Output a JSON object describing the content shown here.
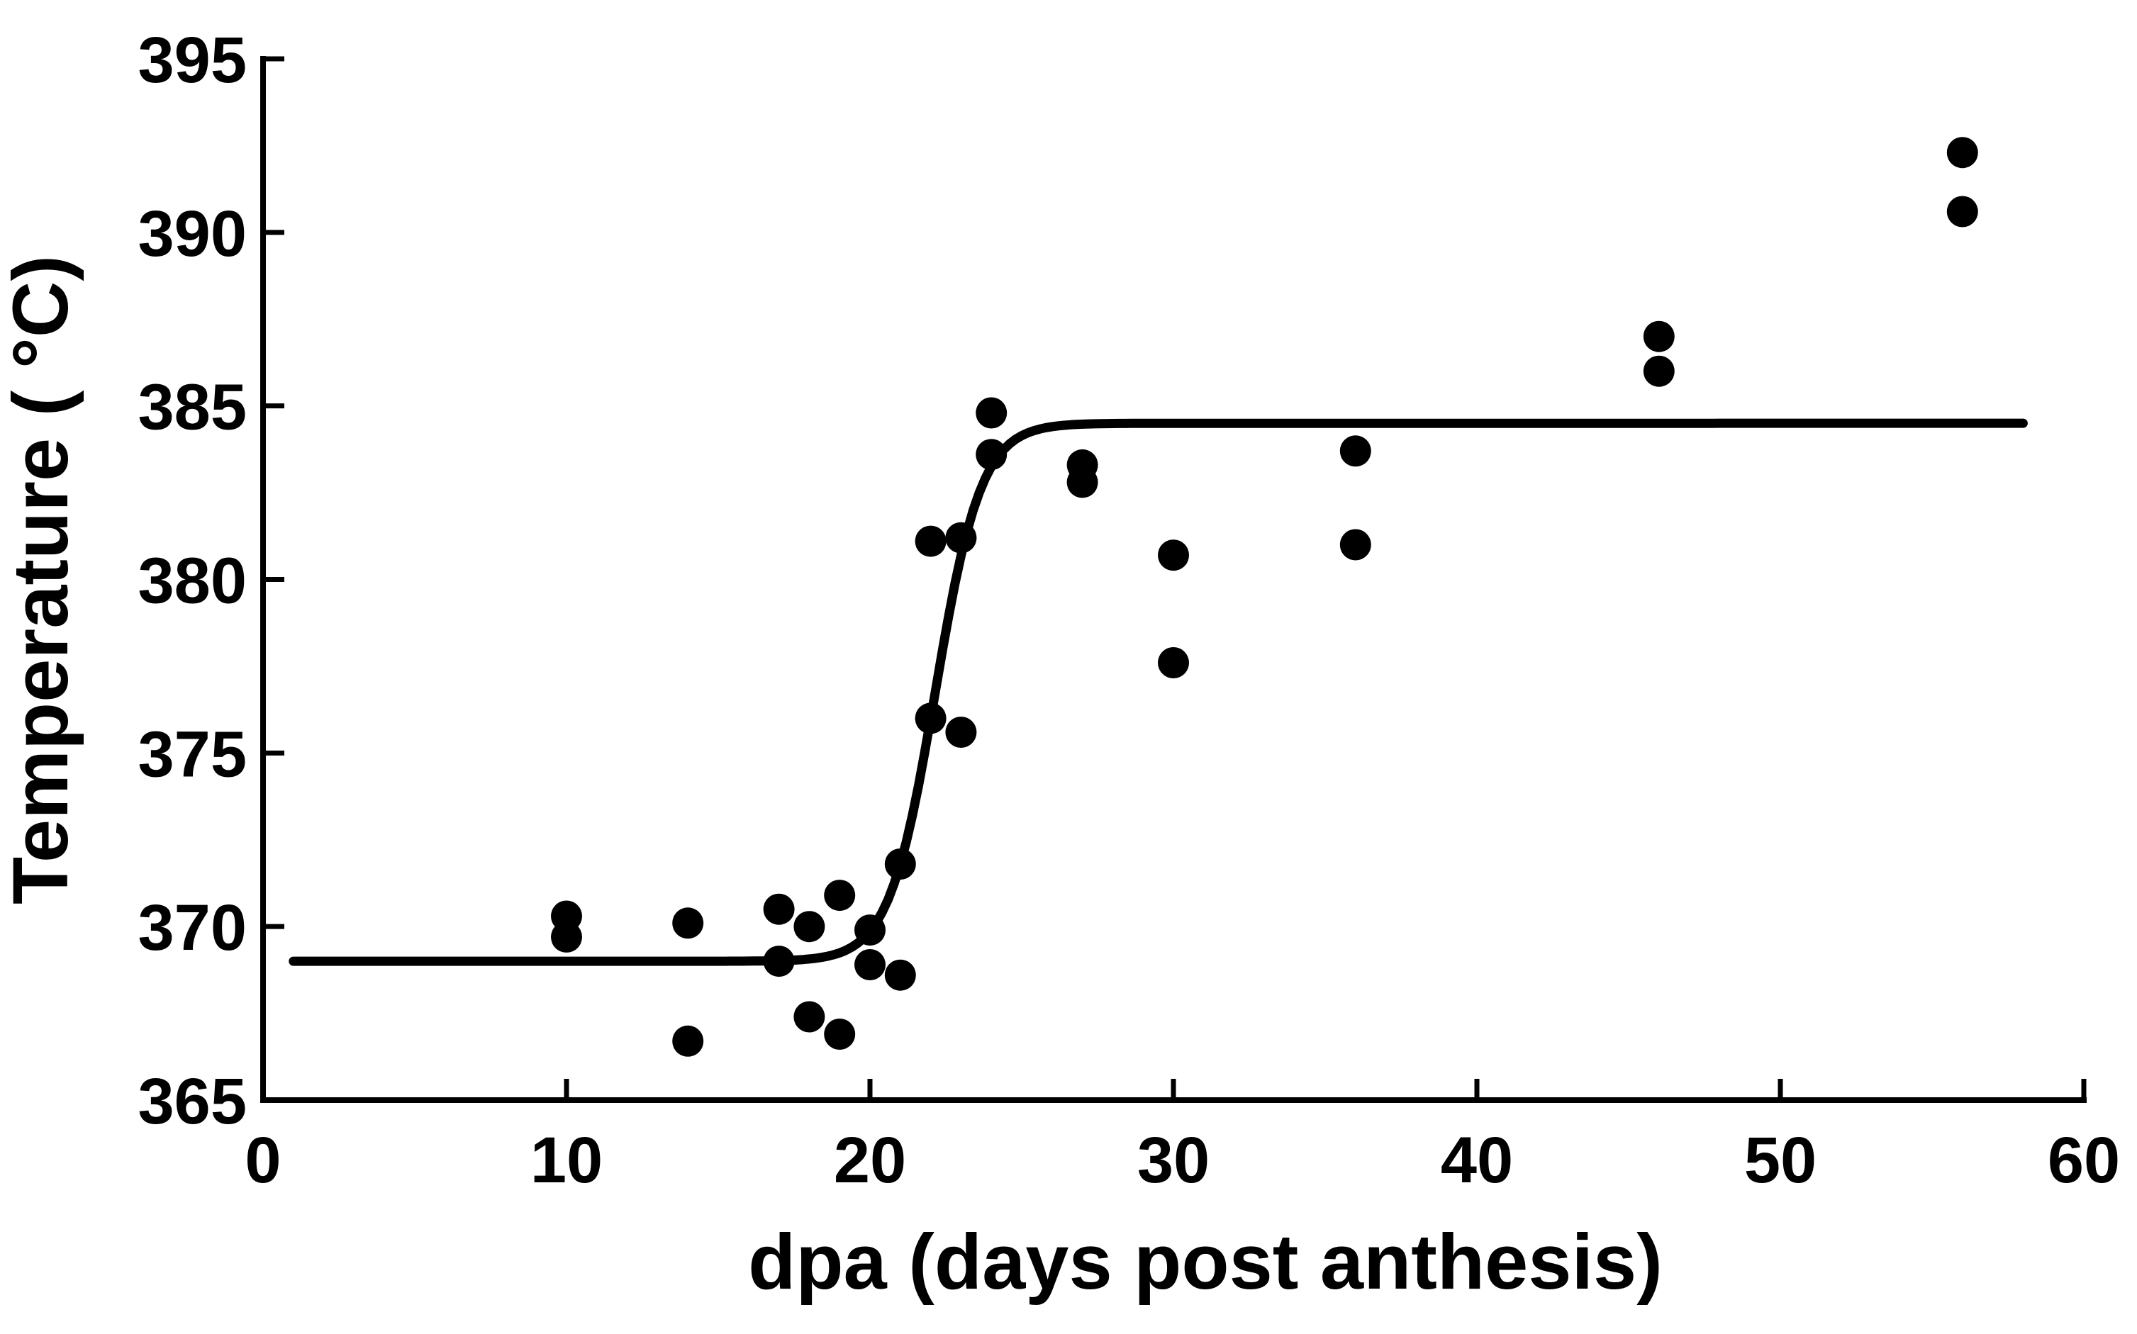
{
  "figure": {
    "background": "#ffffff",
    "ink_color": "#000000"
  },
  "chart_data": {
    "type": "scatter",
    "title": "",
    "xlabel": "dpa (days post anthesis)",
    "ylabel": "Temperature ( °C)",
    "xlim": [
      0,
      60
    ],
    "ylim": [
      365,
      395
    ],
    "x_ticks": [
      0,
      10,
      20,
      30,
      40,
      50,
      60
    ],
    "y_ticks": [
      365,
      370,
      375,
      380,
      385,
      390,
      395
    ],
    "grid": false,
    "legend_position": "none",
    "marker_color": "#000000",
    "line_color": "#000000",
    "points": [
      {
        "x": 10,
        "y": 370.3
      },
      {
        "x": 10,
        "y": 369.7
      },
      {
        "x": 14,
        "y": 370.1
      },
      {
        "x": 14,
        "y": 366.7
      },
      {
        "x": 17,
        "y": 370.5
      },
      {
        "x": 17,
        "y": 369.0
      },
      {
        "x": 18,
        "y": 370.0
      },
      {
        "x": 18,
        "y": 367.4
      },
      {
        "x": 19,
        "y": 370.9
      },
      {
        "x": 19,
        "y": 366.9
      },
      {
        "x": 20,
        "y": 369.9
      },
      {
        "x": 20,
        "y": 368.9
      },
      {
        "x": 21,
        "y": 371.8
      },
      {
        "x": 21,
        "y": 368.6
      },
      {
        "x": 22,
        "y": 376.0
      },
      {
        "x": 22,
        "y": 381.1
      },
      {
        "x": 23,
        "y": 375.6
      },
      {
        "x": 23,
        "y": 381.2
      },
      {
        "x": 24,
        "y": 384.8
      },
      {
        "x": 24,
        "y": 383.6
      },
      {
        "x": 27,
        "y": 383.3
      },
      {
        "x": 27,
        "y": 382.8
      },
      {
        "x": 30,
        "y": 380.7
      },
      {
        "x": 30,
        "y": 377.6
      },
      {
        "x": 36,
        "y": 383.7
      },
      {
        "x": 36,
        "y": 381.0
      },
      {
        "x": 46,
        "y": 387.0
      },
      {
        "x": 46,
        "y": 386.0
      },
      {
        "x": 56,
        "y": 392.3
      },
      {
        "x": 56,
        "y": 390.6
      }
    ],
    "fit_curve": {
      "type": "logistic",
      "lower_asymptote": 369.0,
      "upper_asymptote": 384.5,
      "midpoint_dpa": 22.15,
      "steepness": 0.76,
      "x_start": 1.0,
      "x_end": 58.0
    }
  }
}
